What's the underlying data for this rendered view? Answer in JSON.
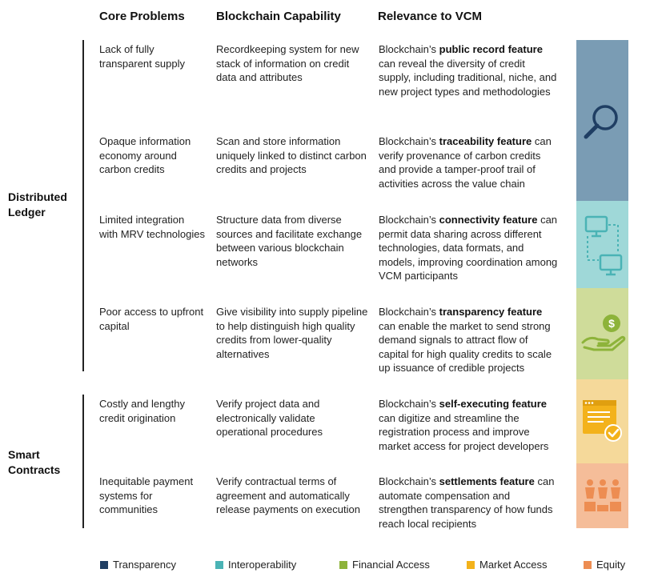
{
  "headers": {
    "problems": "Core Problems",
    "capability": "Blockchain Capability",
    "relevance": "Relevance to VCM"
  },
  "groups": [
    {
      "label_line1": "Distributed",
      "label_line2": "Ledger"
    },
    {
      "label_line1": "Smart",
      "label_line2": "Contracts"
    }
  ],
  "rows": [
    {
      "problem": "Lack of fully transparent supply",
      "capability": "Recordkeeping system for new stack of information on credit data and attributes",
      "relevance_prefix": "Blockchain’s ",
      "relevance_feature": "public record feature",
      "relevance_suffix": " can reveal the diversity of credit supply, including traditional, niche, and new project types and methodologies"
    },
    {
      "problem": "Opaque information economy around carbon credits",
      "capability": "Scan and store information uniquely linked to distinct carbon credits and projects",
      "relevance_prefix": "Blockchain’s ",
      "relevance_feature": "traceability feature",
      "relevance_suffix": " can verify provenance of carbon credits and provide a tamper-proof trail of activities across the value chain"
    },
    {
      "problem": "Limited integration with MRV technologies",
      "capability": "Structure data from diverse sources and facilitate exchange between various blockchain networks",
      "relevance_prefix": "Blockchain’s ",
      "relevance_feature": "connectivity feature",
      "relevance_suffix": " can permit data sharing across different technologies, data formats, and models, improving coordination among VCM participants"
    },
    {
      "problem": "Poor access to upfront capital",
      "capability": "Give visibility into supply pipeline to help distinguish high quality credits from lower-quality alternatives",
      "relevance_prefix": "Blockchain’s ",
      "relevance_feature": "transparency feature",
      "relevance_suffix": " can enable the market to send strong demand signals to attract flow of capital for high quality credits to scale up issuance of credible projects"
    },
    {
      "problem": "Costly and lengthy credit origination",
      "capability": "Verify project data and electronically validate operational procedures",
      "relevance_prefix": "Blockchain’s ",
      "relevance_feature": "self-executing feature",
      "relevance_suffix": " can digitize and streamline the registration process and improve market access for project developers"
    },
    {
      "problem": "Inequitable payment systems for communities",
      "capability": "Verify contractual terms of agreement and automatically release payments on execution",
      "relevance_prefix": "Blockchain’s ",
      "relevance_feature": "settlements feature",
      "relevance_suffix": " can automate compensation and strengthen transparency of how funds reach local recipients"
    }
  ],
  "categories": [
    {
      "name": "Transparency",
      "color": "#1f3e63",
      "block_color": "#7a9cb4",
      "icon": "magnifier-icon"
    },
    {
      "name": "Interoperability",
      "color": "#4ab3b5",
      "block_color": "#9fd8d8",
      "icon": "connected-monitors-icon"
    },
    {
      "name": "Financial Access",
      "color": "#8db33a",
      "block_color": "#cfdc9a",
      "icon": "hand-coin-icon"
    },
    {
      "name": "Market Access",
      "color": "#f3b21b",
      "block_color": "#f5d99a",
      "icon": "document-check-icon"
    },
    {
      "name": "Equity",
      "color": "#ed8d52",
      "block_color": "#f5bd99",
      "icon": "people-podium-icon"
    }
  ]
}
